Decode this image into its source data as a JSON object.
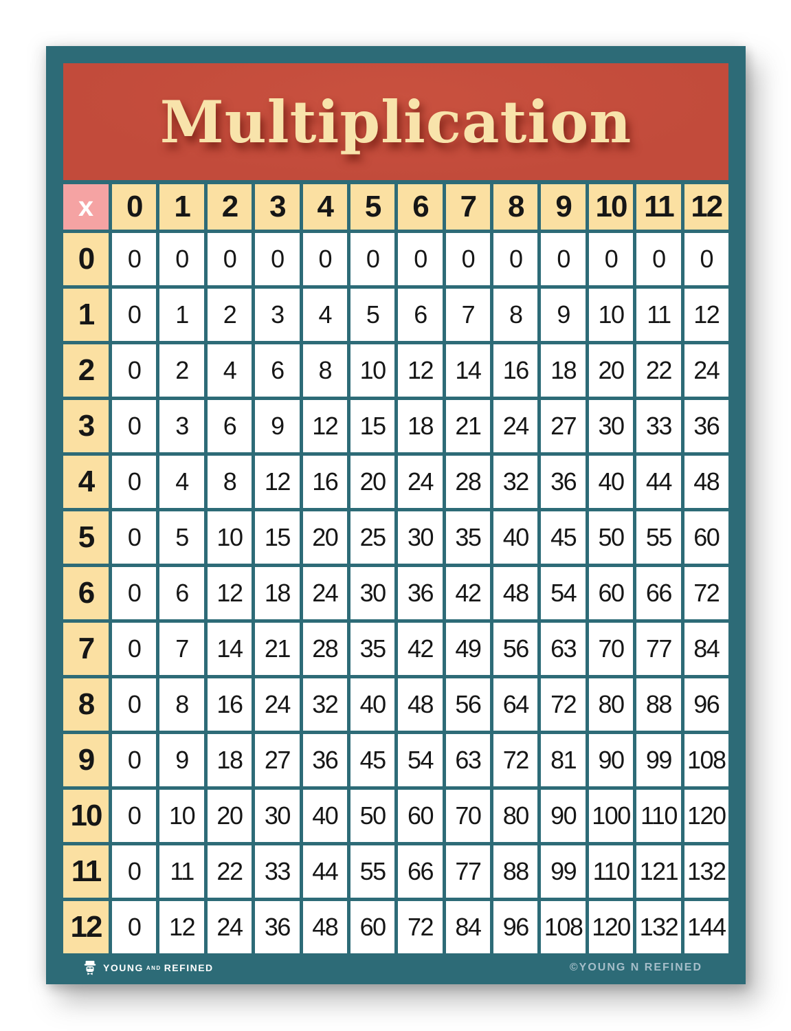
{
  "poster": {
    "title": "Multiplication",
    "footer": {
      "brand_word1": "YOUNG",
      "brand_word2": "AND",
      "brand_word3": "REFINED",
      "copyright": "©YOUNG N REFINED"
    },
    "colors": {
      "frame_teal": "#2d6b77",
      "banner_red": "#c24b3b",
      "title_cream": "#f8e3ab",
      "header_cream": "#fbe0a2",
      "corner_pink": "#f5a3a3",
      "cell_white": "#ffffff",
      "number_black": "#161616",
      "copyright_gray": "#a6bec9"
    }
  },
  "chart_data": {
    "type": "table",
    "title": "Multiplication",
    "corner": "x",
    "column_headers": [
      "0",
      "1",
      "2",
      "3",
      "4",
      "5",
      "6",
      "7",
      "8",
      "9",
      "10",
      "11",
      "12"
    ],
    "row_headers": [
      "0",
      "1",
      "2",
      "3",
      "4",
      "5",
      "6",
      "7",
      "8",
      "9",
      "10",
      "11",
      "12"
    ],
    "rows": [
      [
        0,
        0,
        0,
        0,
        0,
        0,
        0,
        0,
        0,
        0,
        0,
        0,
        0
      ],
      [
        0,
        1,
        2,
        3,
        4,
        5,
        6,
        7,
        8,
        9,
        10,
        11,
        12
      ],
      [
        0,
        2,
        4,
        6,
        8,
        10,
        12,
        14,
        16,
        18,
        20,
        22,
        24
      ],
      [
        0,
        3,
        6,
        9,
        12,
        15,
        18,
        21,
        24,
        27,
        30,
        33,
        36
      ],
      [
        0,
        4,
        8,
        12,
        16,
        20,
        24,
        28,
        32,
        36,
        40,
        44,
        48
      ],
      [
        0,
        5,
        10,
        15,
        20,
        25,
        30,
        35,
        40,
        45,
        50,
        55,
        60
      ],
      [
        0,
        6,
        12,
        18,
        24,
        30,
        36,
        42,
        48,
        54,
        60,
        66,
        72
      ],
      [
        0,
        7,
        14,
        21,
        28,
        35,
        42,
        49,
        56,
        63,
        70,
        77,
        84
      ],
      [
        0,
        8,
        16,
        24,
        32,
        40,
        48,
        56,
        64,
        72,
        80,
        88,
        96
      ],
      [
        0,
        9,
        18,
        27,
        36,
        45,
        54,
        63,
        72,
        81,
        90,
        99,
        108
      ],
      [
        0,
        10,
        20,
        30,
        40,
        50,
        60,
        70,
        80,
        90,
        100,
        110,
        120
      ],
      [
        0,
        11,
        22,
        33,
        44,
        55,
        66,
        77,
        88,
        99,
        110,
        121,
        132
      ],
      [
        0,
        12,
        24,
        36,
        48,
        60,
        72,
        84,
        96,
        108,
        120,
        132,
        144
      ]
    ]
  }
}
